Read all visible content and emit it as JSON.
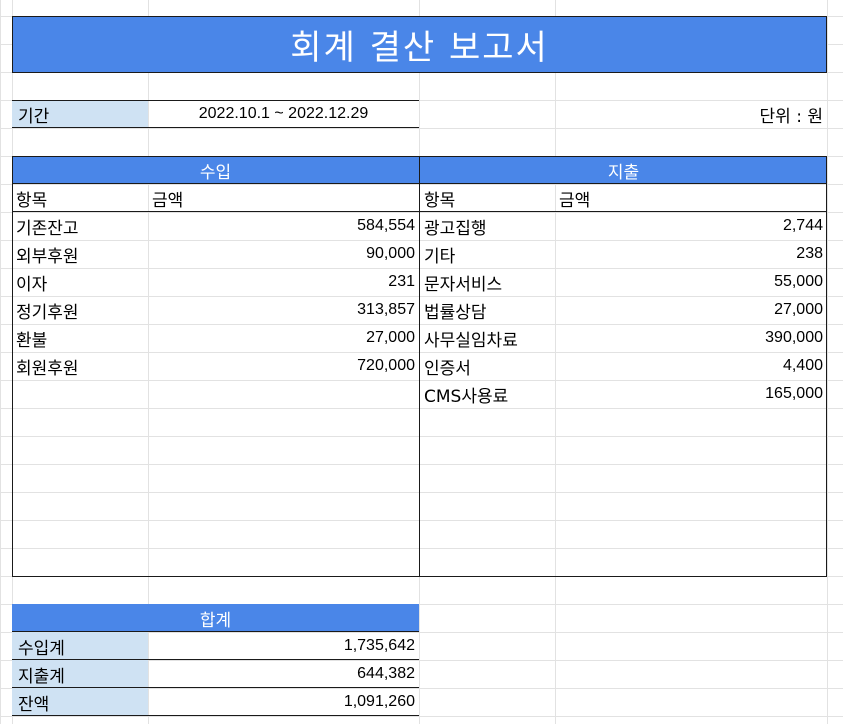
{
  "title": "회계 결산 보고서",
  "period": {
    "label": "기간",
    "value": "2022.10.1 ~ 2022.12.29"
  },
  "unit": "단위 : 원",
  "income": {
    "header": "수입",
    "col_item": "항목",
    "col_amount": "금액",
    "rows": [
      {
        "item": "기존잔고",
        "amount": "584,554"
      },
      {
        "item": "외부후원",
        "amount": "90,000"
      },
      {
        "item": "이자",
        "amount": "231"
      },
      {
        "item": "정기후원",
        "amount": "313,857"
      },
      {
        "item": "환불",
        "amount": "27,000"
      },
      {
        "item": "회원후원",
        "amount": "720,000"
      }
    ]
  },
  "expense": {
    "header": "지출",
    "col_item": "항목",
    "col_amount": "금액",
    "rows": [
      {
        "item": "광고집행",
        "amount": "2,744"
      },
      {
        "item": "기타",
        "amount": "238"
      },
      {
        "item": "문자서비스",
        "amount": "55,000"
      },
      {
        "item": "법률상담",
        "amount": "27,000"
      },
      {
        "item": "사무실임차료",
        "amount": "390,000"
      },
      {
        "item": "인증서",
        "amount": "4,400"
      },
      {
        "item": "CMS사용료",
        "amount": "165,000"
      }
    ]
  },
  "summary": {
    "header": "합계",
    "rows": [
      {
        "label": "수입계",
        "amount": "1,735,642"
      },
      {
        "label": "지출계",
        "amount": "644,382"
      },
      {
        "label": "잔액",
        "amount": "1,091,260"
      }
    ]
  }
}
